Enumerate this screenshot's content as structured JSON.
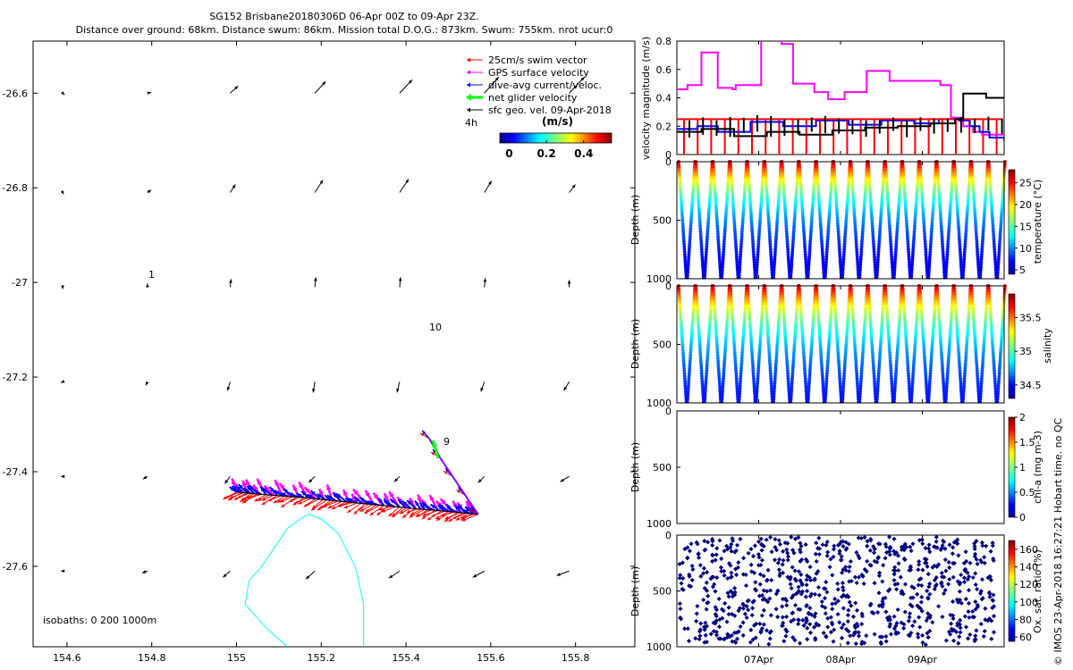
{
  "header": {
    "title_line1": "SG152 Brisbane20180306D 06-Apr 00Z to 09-Apr 23Z.",
    "title_line2": "Distance over ground: 68km. Distance swum: 86km. Mission total D.O.G.: 873km. Swum: 755km. nrot ucur:0"
  },
  "credit": "© IMOS 23-Apr-2018 16:27:21 Hobart time. no QC",
  "colors": {
    "swim": "#ff0000",
    "gps": "#ff00ff",
    "dive_avg": "#0000ff",
    "net": "#00ff00",
    "geo": "#000000",
    "isobath": "#00ffff",
    "oxygen": "#000080"
  },
  "chart_data": [
    {
      "type": "vector-map",
      "id": "map",
      "title": "SG152 Brisbane20180306D 06-Apr 00Z to 09-Apr 23Z.",
      "xlim": [
        154.52,
        155.94
      ],
      "ylim": [
        -27.77,
        -26.49
      ],
      "x_ticks": [
        154.6,
        154.8,
        155,
        155.2,
        155.4,
        155.6,
        155.8
      ],
      "x_tick_labels": [
        "154.6",
        "154.8",
        "155",
        "155.2",
        "155.4",
        "155.6",
        "155.8"
      ],
      "y_ticks": [
        -26.6,
        -26.8,
        -27,
        -27.2,
        -27.4,
        -27.6
      ],
      "y_tick_labels": [
        "-26.6",
        "-26.8",
        "-27",
        "-27.2",
        "-27.4",
        "-27.6"
      ],
      "legend": {
        "placement": "top-right",
        "entries": [
          "25cm/s swim vector",
          "GPS surface velocity",
          "dive-avg current/veloc.",
          "net glider velocity",
          "sfc geo. vel. 09-Apr-2018"
        ],
        "colorbar_label": "(m/s)",
        "colorbar_ticks": [
          "0",
          "0.2",
          "0.4"
        ],
        "colorbar_range": [
          -0.05,
          0.55
        ],
        "interval_label": "4h"
      },
      "annotations": {
        "isobaths": "isobaths: 0   200  1000m",
        "contour_label_1": "1",
        "contour_label_10": "10",
        "contour_label_9": "9"
      },
      "geo_grid": {
        "lons": [
          154.59,
          154.79,
          154.985,
          155.185,
          155.385,
          155.585,
          155.785,
          155.965
        ],
        "lats": [
          -26.6,
          -26.81,
          -27.01,
          -27.21,
          -27.41,
          -27.61
        ],
        "u": [
          [
            0.02,
            0.04,
            0.09,
            0.12,
            0.14,
            0.16,
            0.17,
            0.14
          ],
          [
            0.01,
            0.04,
            0.06,
            0.09,
            0.1,
            0.08,
            0.07,
            0.07
          ],
          [
            0.0,
            0.0,
            0.01,
            0.01,
            0.01,
            0.01,
            0.0,
            0.0
          ],
          [
            -0.02,
            -0.02,
            -0.03,
            -0.02,
            -0.03,
            -0.04,
            -0.06,
            -0.05
          ],
          [
            -0.02,
            -0.05,
            -0.06,
            -0.07,
            -0.06,
            -0.07,
            -0.1,
            -0.08
          ],
          [
            -0.02,
            -0.06,
            -0.08,
            -0.1,
            -0.12,
            -0.13,
            -0.14,
            -0.1
          ]
        ],
        "v": [
          [
            -0.02,
            0.01,
            0.08,
            0.13,
            0.15,
            0.18,
            0.18,
            0.14
          ],
          [
            -0.02,
            0.03,
            0.09,
            0.14,
            0.15,
            0.13,
            0.09,
            0.05
          ],
          [
            -0.02,
            0.04,
            0.09,
            0.11,
            0.11,
            0.1,
            0.08,
            0.07
          ],
          [
            -0.01,
            -0.04,
            -0.1,
            -0.12,
            -0.12,
            -0.11,
            -0.1,
            -0.06
          ],
          [
            0.0,
            -0.03,
            -0.08,
            -0.07,
            -0.06,
            -0.07,
            -0.06,
            -0.05
          ],
          [
            0.0,
            -0.02,
            -0.07,
            -0.09,
            -0.08,
            -0.07,
            -0.05,
            -0.02
          ]
        ]
      },
      "track": {
        "lon": [
          155.57,
          155.5,
          155.42,
          155.33,
          155.24,
          155.15,
          155.06,
          155.0
        ],
        "lat": [
          -27.49,
          -27.484,
          -27.478,
          -27.47,
          -27.462,
          -27.454,
          -27.448,
          -27.443
        ]
      },
      "return_leg": {
        "lon": [
          155.57,
          155.54,
          155.51,
          155.48,
          155.455
        ],
        "lat": [
          -27.49,
          -27.45,
          -27.41,
          -27.37,
          -27.33
        ]
      },
      "isobath_lon": [
        155.12,
        155.07,
        155.02,
        155.03,
        155.06,
        155.09,
        155.12,
        155.15,
        155.17,
        155.2,
        155.24,
        155.28,
        155.3,
        155.3
      ],
      "isobath_lat": [
        -27.77,
        -27.73,
        -27.68,
        -27.63,
        -27.6,
        -27.56,
        -27.52,
        -27.5,
        -27.49,
        -27.5,
        -27.53,
        -27.6,
        -27.68,
        -27.77
      ]
    },
    {
      "type": "line",
      "id": "velocity",
      "ylabel": "velocity magnitude (m/s)",
      "ylim": [
        0,
        0.8
      ],
      "y_ticks": [
        "0",
        "0.2",
        "0.4",
        "0.6",
        "0.8"
      ],
      "x_range_days": [
        0,
        4
      ],
      "series": [
        {
          "name": "GPS surface velocity",
          "color": "#ff00ff",
          "step": true,
          "x": [
            0,
            0.13,
            0.3,
            0.5,
            0.68,
            0.72,
            1.03,
            1.28,
            1.42,
            1.68,
            1.85,
            2.05,
            2.32,
            2.6,
            3.22,
            3.35,
            3.5,
            3.62,
            3.73,
            4.0
          ],
          "y": [
            0.46,
            0.49,
            0.72,
            0.47,
            0.46,
            0.49,
            0.88,
            0.78,
            0.5,
            0.44,
            0.39,
            0.44,
            0.59,
            0.52,
            0.49,
            0.26,
            0.2,
            0.16,
            0.14,
            0.14
          ]
        },
        {
          "name": "dive-avg current",
          "color": "#0000ff",
          "step": true,
          "x": [
            0,
            0.25,
            0.5,
            0.9,
            1.3,
            1.7,
            2.1,
            2.5,
            2.9,
            3.2,
            3.45,
            3.58,
            3.7,
            3.82,
            4.0
          ],
          "y": [
            0.18,
            0.2,
            0.16,
            0.23,
            0.2,
            0.24,
            0.21,
            0.24,
            0.22,
            0.25,
            0.24,
            0.2,
            0.16,
            0.12,
            0.1
          ]
        },
        {
          "name": "swim speed",
          "color": "#ff0000",
          "step": true,
          "x": [
            0,
            3.98
          ],
          "y": [
            0.25,
            0.25
          ]
        },
        {
          "name": "net glider velocity",
          "color": "#000000",
          "step": true,
          "x": [
            0,
            0.3,
            0.7,
            1.1,
            1.5,
            1.9,
            2.3,
            2.7,
            3.1,
            3.4,
            3.5,
            3.78,
            4.0
          ],
          "y": [
            0.16,
            0.18,
            0.13,
            0.16,
            0.14,
            0.17,
            0.19,
            0.2,
            0.22,
            0.25,
            0.43,
            0.4,
            0.4
          ]
        }
      ]
    },
    {
      "type": "scatter",
      "id": "temperature",
      "ylabel": "Depth (m)",
      "ylim": [
        1000,
        0
      ],
      "y_ticks": [
        "0",
        "500",
        "1000"
      ],
      "colorbar_label": "temperature (°C)",
      "colorbar_ticks": [
        "5",
        "10",
        "15",
        "20",
        "25"
      ],
      "clim": [
        4,
        28
      ],
      "profile_count": 38,
      "max_depth": 1000,
      "surface_value": 27,
      "bottom_value": 5,
      "thermocline_scale": 350
    },
    {
      "type": "scatter",
      "id": "salinity",
      "ylabel": "Depth (m)",
      "ylim": [
        1000,
        0
      ],
      "y_ticks": [
        "0",
        "500",
        "1000"
      ],
      "colorbar_label": "salinity",
      "colorbar_ticks": [
        "34.5",
        "35",
        "35.5"
      ],
      "clim": [
        34.3,
        35.85
      ],
      "profile_count": 38,
      "max_depth": 1000,
      "surface_value": 35.75,
      "bottom_value": 34.4,
      "thermocline_scale": 400
    },
    {
      "type": "scatter",
      "id": "chla",
      "ylabel": "Depth (m)",
      "ylim": [
        1000,
        0
      ],
      "y_ticks": [
        "0",
        "500",
        "1000"
      ],
      "colorbar_label": "chl-a (mg m-3)",
      "colorbar_ticks": [
        "0",
        "0.5",
        "1",
        "1.5",
        "2"
      ],
      "clim": [
        0,
        2
      ],
      "profile_count": 0
    },
    {
      "type": "scatter",
      "id": "oxygen",
      "ylabel": "Depth (m)",
      "ylim": [
        1000,
        0
      ],
      "y_ticks": [
        "0",
        "500",
        "1000"
      ],
      "colorbar_label": "Ox. sat. ratio (%)",
      "colorbar_ticks": [
        "60",
        "80",
        "100",
        "120",
        "140",
        "160"
      ],
      "clim": [
        55,
        170
      ],
      "point_count": 900,
      "marker_color": "#000080"
    },
    {
      "type": "axis",
      "id": "time",
      "x_tick_labels": [
        "07Apr",
        "08Apr",
        "09Apr"
      ],
      "x_ticks_days": [
        1,
        2,
        3
      ]
    }
  ]
}
